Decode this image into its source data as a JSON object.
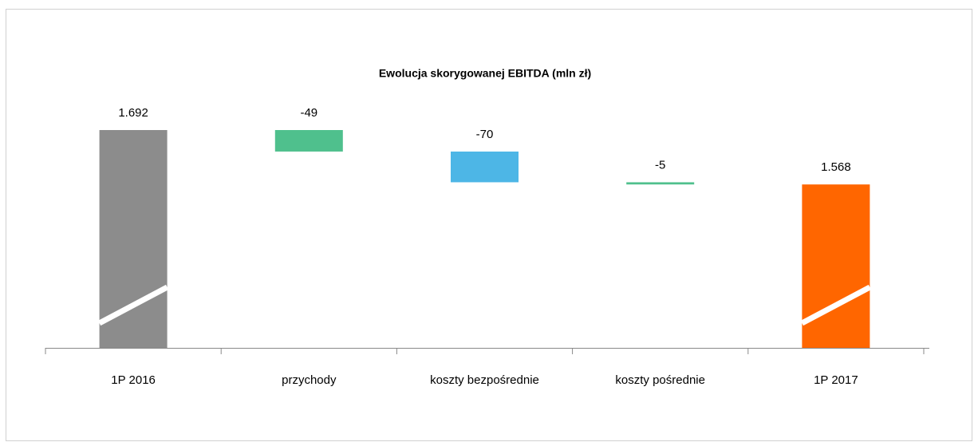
{
  "chart_data": {
    "type": "waterfall",
    "title": "Ewolucja skorygowanej EBITDA  (mln zł)",
    "categories": [
      "1P 2016",
      "przychody",
      "koszty bezpośrednie",
      "koszty pośrednie",
      "1P 2017"
    ],
    "values": [
      1692,
      -49,
      -70,
      -5,
      1568
    ],
    "value_labels": [
      "1.692",
      "-49",
      "-70",
      "-5",
      "1.568"
    ],
    "colors": [
      "#8c8c8c",
      "#4fc08d",
      "#4db6e6",
      "#4fc08d",
      "#ff6600"
    ]
  }
}
